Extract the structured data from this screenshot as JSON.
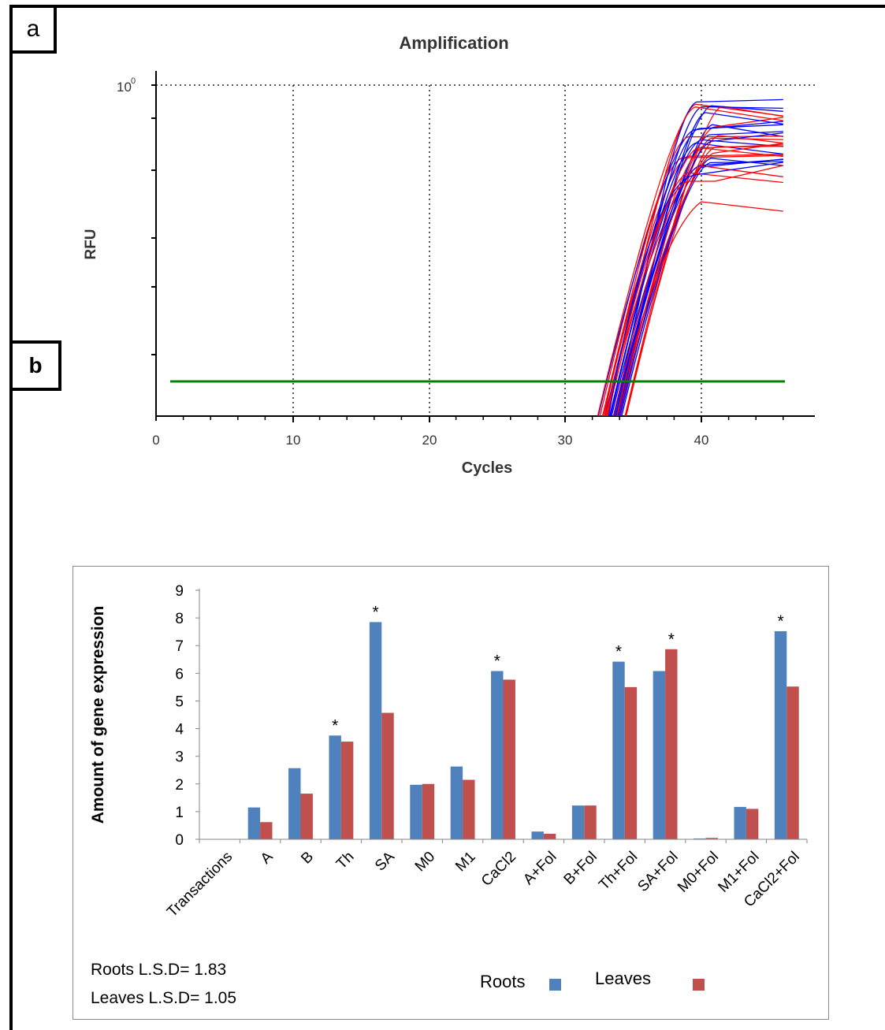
{
  "panels": {
    "a": "a",
    "b": "b"
  },
  "chart_data": [
    {
      "type": "line",
      "title": "Amplification",
      "xlabel": "Cycles",
      "ylabel": "RFU",
      "x_ticks": [
        "0",
        "10",
        "20",
        "30",
        "40"
      ],
      "y_tick_label": "10",
      "y_tick_exp": "0",
      "xlim": [
        0,
        48
      ],
      "threshold_color": "#008000",
      "series_colors": [
        "#0000ff",
        "#ff0000"
      ],
      "grid": "dotted"
    },
    {
      "type": "bar",
      "ylabel": "Amount of gene expression",
      "ylim": [
        0,
        9
      ],
      "y_ticks": [
        "0",
        "1",
        "2",
        "3",
        "4",
        "5",
        "6",
        "7",
        "8",
        "9"
      ],
      "categories": [
        "Transactions",
        "A",
        "B",
        "Th",
        "SA",
        "M0",
        "M1",
        "CaCl2",
        "A+Fol",
        "B+Fol",
        "Th+Fol",
        "SA+Fol",
        "M0+Fol",
        "M1+Fol",
        "CaCl2+Fol"
      ],
      "series": [
        {
          "name": "Roots",
          "color": "#4f81bd",
          "values": [
            0,
            1.15,
            2.57,
            3.75,
            7.85,
            1.97,
            2.63,
            6.08,
            0.28,
            1.22,
            6.42,
            6.08,
            0.03,
            1.17,
            7.52
          ]
        },
        {
          "name": "Leaves",
          "color": "#c0504d",
          "values": [
            0,
            0.62,
            1.65,
            3.53,
            4.57,
            2.0,
            2.15,
            5.77,
            0.2,
            1.22,
            5.5,
            6.87,
            0.05,
            1.1,
            5.52
          ]
        }
      ],
      "significance_marker": "*",
      "significant_categories": [
        "Th",
        "SA",
        "CaCl2",
        "Th+Fol",
        "SA+Fol",
        "CaCl2+Fol"
      ],
      "annotations": [
        "Roots L.S.D= 1.83",
        "Leaves L.S.D= 1.05"
      ],
      "legend": "bottom",
      "legend_labels": [
        "Roots",
        "Leaves"
      ]
    }
  ]
}
